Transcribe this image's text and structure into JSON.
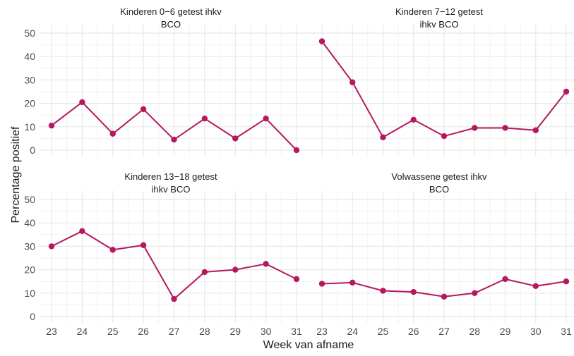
{
  "colors": {
    "series": "#b5185e",
    "grid": "#e8e8e8",
    "text": "#4d4d4d",
    "title": "#1a1a1a"
  },
  "chart_data": {
    "type": "line",
    "layout": "facet-2x2",
    "xlabel": "Week van afname",
    "ylabel": "Percentage positief",
    "x": [
      23,
      24,
      25,
      26,
      27,
      28,
      29,
      30,
      31
    ],
    "ylim": [
      0,
      50
    ],
    "yticks": [
      0,
      10,
      20,
      30,
      40,
      50
    ],
    "grid": true,
    "panels": [
      {
        "title_lines": [
          "Kinderen 0−6 getest ihkv",
          "BCO"
        ],
        "values": [
          10.5,
          20.5,
          7,
          17.5,
          4.5,
          13.5,
          5,
          13.5,
          0
        ]
      },
      {
        "title_lines": [
          "Kinderen 7−12 getest",
          "ihkv BCO"
        ],
        "values": [
          46.5,
          29,
          5.5,
          13,
          6,
          9.5,
          9.5,
          8.5,
          25
        ]
      },
      {
        "title_lines": [
          "Kinderen 13−18 getest",
          "ihkv BCO"
        ],
        "values": [
          30,
          36.5,
          28.5,
          30.5,
          7.5,
          19,
          20,
          22.5,
          16
        ]
      },
      {
        "title_lines": [
          "Volwassene getest ihkv",
          "BCO"
        ],
        "values": [
          14,
          14.5,
          11,
          10.5,
          8.5,
          10,
          16,
          13,
          15
        ]
      }
    ]
  }
}
